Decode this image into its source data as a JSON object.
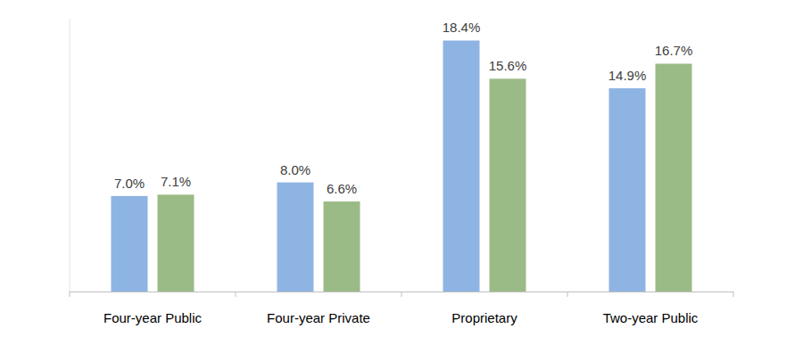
{
  "chart_data": {
    "type": "bar",
    "categories": [
      "Four-year Public",
      "Four-year Private",
      "Proprietary",
      "Two-year Public"
    ],
    "series": [
      {
        "color": "#8eb4e3",
        "values": [
          7.0,
          8.0,
          18.4,
          14.9
        ],
        "value_labels": [
          "7.0%",
          "8.0%",
          "18.4%",
          "14.9%"
        ]
      },
      {
        "color": "#9bbb86",
        "values": [
          7.1,
          6.6,
          15.6,
          16.7
        ],
        "value_labels": [
          "7.1%",
          "6.6%",
          "15.6%",
          "16.7%"
        ]
      }
    ],
    "ylim": [
      0,
      20
    ],
    "yticks": [],
    "grid": false,
    "data_labels": true,
    "tick_labels": "x"
  }
}
